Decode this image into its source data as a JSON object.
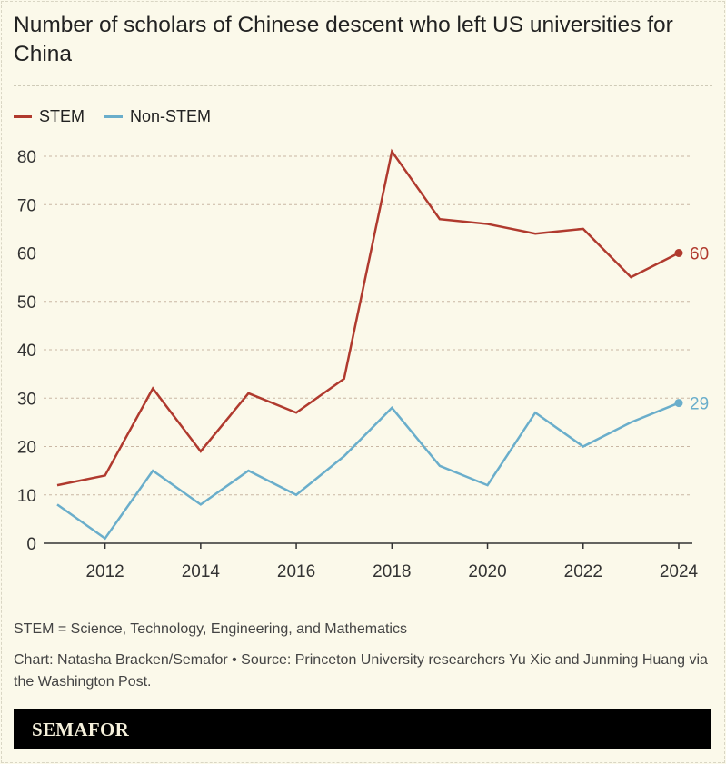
{
  "chart_data": {
    "type": "line",
    "title": "Number of scholars of Chinese descent who left US universities for China",
    "x": [
      2011,
      2012,
      2013,
      2014,
      2015,
      2016,
      2017,
      2018,
      2019,
      2020,
      2021,
      2022,
      2023,
      2024
    ],
    "series": [
      {
        "name": "STEM",
        "color": "#b03a2e",
        "values": [
          12,
          14,
          32,
          19,
          31,
          27,
          34,
          81,
          67,
          66,
          64,
          65,
          55,
          60
        ],
        "end_label": "60"
      },
      {
        "name": "Non-STEM",
        "color": "#6aaecb",
        "values": [
          8,
          1,
          15,
          8,
          15,
          10,
          18,
          28,
          16,
          12,
          27,
          20,
          25,
          29
        ],
        "end_label": "29"
      }
    ],
    "xticks": [
      "2012",
      "2014",
      "2016",
      "2018",
      "2020",
      "2022",
      "2024"
    ],
    "yticks": [
      "0",
      "10",
      "20",
      "30",
      "40",
      "50",
      "60",
      "70",
      "80"
    ],
    "ylim": [
      0,
      80
    ],
    "xlim": [
      2011,
      2024
    ],
    "grid": "horizontal dashed",
    "legend": "top-left",
    "xlabel": "",
    "ylabel": ""
  },
  "notes": {
    "definition": "STEM = Science, Technology, Engineering, and Mathematics",
    "source": "Chart: Natasha Bracken/Semafor • Source: Princeton University researchers Yu Xie and Junming Huang via the Washington Post."
  },
  "brand": "SEMAFOR"
}
